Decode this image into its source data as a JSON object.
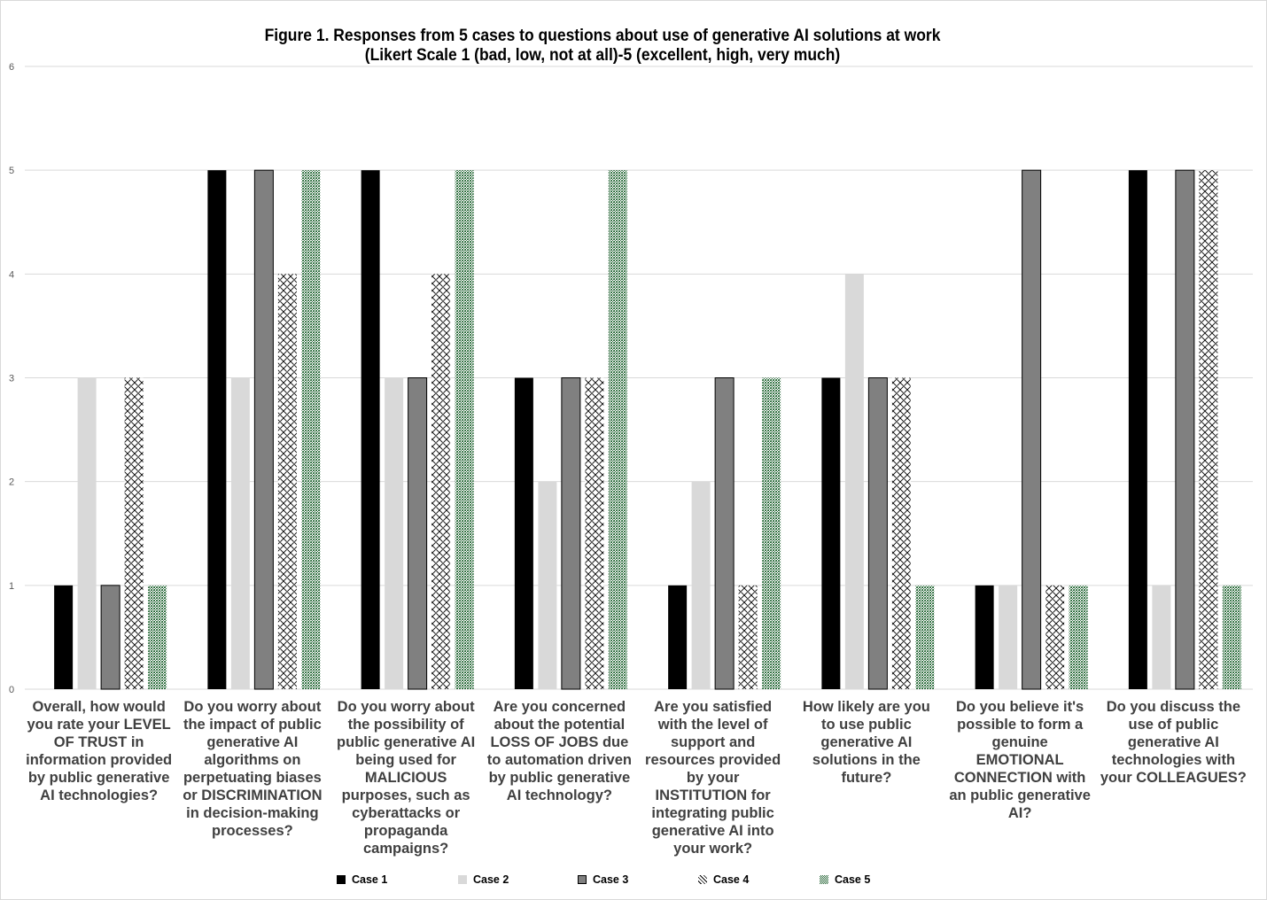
{
  "chart_data": {
    "type": "bar",
    "title": "Figure 1. Responses from 5 cases to questions about use of generative AI solutions at work",
    "subtitle": "(Likert Scale 1 (bad, low, not at all)-5 (excellent, high, very much)",
    "xlabel": "",
    "ylabel": "",
    "ylim": [
      0,
      6
    ],
    "yticks": [
      "0",
      "1",
      "2",
      "3",
      "4",
      "5",
      "6"
    ],
    "grid": true,
    "legend_position": "bottom",
    "categories": [
      "Overall, how would you rate your LEVEL OF TRUST in information provided by  public generative AI technologies?",
      "Do you worry about the impact of public generative AI algorithms on perpetuating biases or DISCRIMINATION in decision-making processes?",
      "Do you worry about the possibility of public generative AI being used for MALICIOUS purposes, such as cyberattacks or propaganda campaigns?",
      "Are you concerned about the potential LOSS OF JOBS due to automation driven by  public generative AI   technology?",
      "Are you satisfied with the level of support and resources provided by your INSTITUTION for integrating  public generative AI   into your work?",
      "How likely are you to use public generative AI solutions in the future?",
      "Do you believe it's possible to form a genuine EMOTIONAL CONNECTION with an  public generative AI?",
      "Do you discuss the use of  public generative AI technologies with your COLLEAGUES?"
    ],
    "category_lines": [
      "Overall, how would\nyou rate your LEVEL\nOF TRUST in\ninformation provided\nby  public generative\nAI technologies?",
      "Do you worry about\nthe impact of public\ngenerative AI\nalgorithms on\nperpetuating biases\nor DISCRIMINATION\nin decision-making\nprocesses?",
      "Do you worry about\nthe possibility of\npublic generative AI\nbeing used for\nMALICIOUS\npurposes, such as\ncyberattacks or\npropaganda\ncampaigns?",
      "Are you concerned\nabout the potential\nLOSS OF JOBS due\nto automation driven\nby  public generative\nAI   technology?",
      "Are you satisfied\nwith the level of\nsupport and\nresources provided\nby your\nINSTITUTION for\nintegrating  public\ngenerative AI   into\nyour work?",
      "How likely are you\nto use public\ngenerative AI\nsolutions in the\nfuture?",
      "Do you believe it's\npossible to form a\ngenuine\nEMOTIONAL\nCONNECTION with\nan  public generative\nAI?",
      "Do you discuss the\nuse of  public\ngenerative AI\ntechnologies with\nyour COLLEAGUES?"
    ],
    "series": [
      {
        "name": "Case 1",
        "values": [
          1,
          5,
          5,
          3,
          1,
          3,
          1,
          5
        ],
        "color": "#000000",
        "pattern": "solid"
      },
      {
        "name": "Case 2",
        "values": [
          3,
          3,
          3,
          2,
          2,
          4,
          1,
          1
        ],
        "color": "#d9d9d9",
        "pattern": "solid"
      },
      {
        "name": "Case 3",
        "values": [
          1,
          5,
          3,
          3,
          3,
          3,
          5,
          5
        ],
        "color": "#808080",
        "pattern": "solid-outlined"
      },
      {
        "name": "Case 4",
        "values": [
          3,
          4,
          4,
          3,
          1,
          3,
          1,
          5
        ],
        "color": "#000000",
        "pattern": "diamond-lattice"
      },
      {
        "name": "Case 5",
        "values": [
          1,
          5,
          5,
          5,
          3,
          1,
          1,
          1
        ],
        "color": "#2e6b3e",
        "pattern": "fine-checker"
      }
    ]
  }
}
